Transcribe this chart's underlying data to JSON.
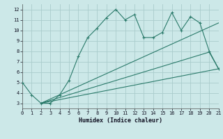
{
  "line1_x": [
    0,
    1,
    2,
    3,
    4,
    5,
    6,
    7,
    8,
    9,
    10,
    11,
    12,
    13,
    14,
    15,
    16,
    17,
    18,
    19,
    20,
    21
  ],
  "line1_y": [
    5.0,
    3.8,
    3.0,
    3.0,
    3.8,
    5.2,
    7.5,
    9.3,
    10.2,
    11.2,
    12.0,
    11.0,
    11.5,
    9.3,
    9.3,
    9.8,
    11.7,
    10.0,
    11.3,
    10.7,
    8.0,
    6.3
  ],
  "line2_x": [
    2,
    20,
    21
  ],
  "line2_y": [
    3.0,
    7.9,
    6.3
  ],
  "line3_x": [
    2,
    21
  ],
  "line3_y": [
    3.0,
    6.3
  ],
  "line4_x": [
    2,
    21
  ],
  "line4_y": [
    3.0,
    10.7
  ],
  "line_color": "#2a7a6a",
  "bg_color": "#cce8e8",
  "grid_color": "#aacccc",
  "xlabel": "Humidex (Indice chaleur)",
  "xlim": [
    0,
    21
  ],
  "ylim": [
    2.5,
    12.5
  ],
  "xticks": [
    0,
    1,
    2,
    3,
    4,
    5,
    6,
    7,
    8,
    9,
    10,
    11,
    12,
    13,
    14,
    15,
    16,
    17,
    18,
    19,
    20,
    21
  ],
  "yticks": [
    3,
    4,
    5,
    6,
    7,
    8,
    9,
    10,
    11,
    12
  ]
}
